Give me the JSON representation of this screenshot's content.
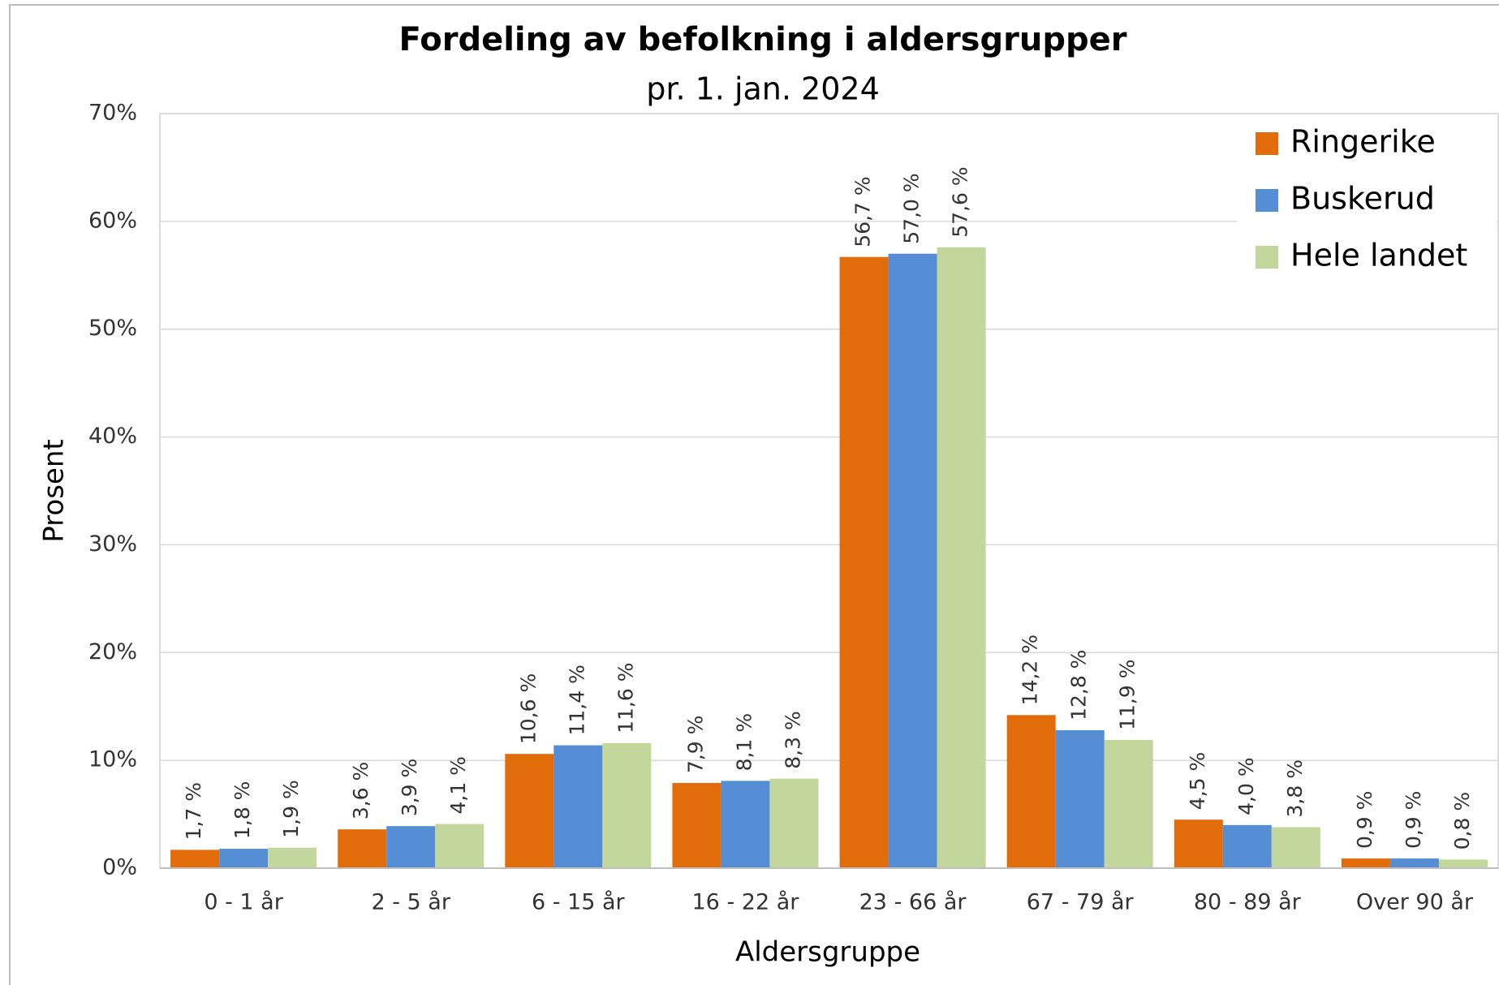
{
  "chart_data": {
    "type": "bar",
    "title": "Fordeling av befolkning i aldersgrupper",
    "subtitle": "pr. 1. jan. 2024",
    "x_label": "Aldersgruppe",
    "y_label": "Prosent",
    "categories": [
      "0 - 1 år",
      "2 - 5 år",
      "6 - 15 år",
      "16 - 22 år",
      "23 - 66 år",
      "67 - 79 år",
      "80 - 89 år",
      "Over 90 år"
    ],
    "series": [
      {
        "name": "Ringerike",
        "color": "#e36c0a",
        "values": [
          1.7,
          3.6,
          10.6,
          7.9,
          56.7,
          14.2,
          4.5,
          0.9
        ],
        "value_labels": [
          "1,7 %",
          "3,6 %",
          "10,6 %",
          "7,9 %",
          "56,7 %",
          "14,2 %",
          "4,5 %",
          "0,9 %"
        ]
      },
      {
        "name": "Buskerud",
        "color": "#558ed5",
        "values": [
          1.8,
          3.9,
          11.4,
          8.1,
          57.0,
          12.8,
          4.0,
          0.9
        ],
        "value_labels": [
          "1,8 %",
          "3,9 %",
          "11,4 %",
          "8,1 %",
          "57,0 %",
          "12,8 %",
          "4,0 %",
          "0,9 %"
        ]
      },
      {
        "name": "Hele landet",
        "color": "#c3d69b",
        "values": [
          1.9,
          4.1,
          11.6,
          8.3,
          57.6,
          11.9,
          3.8,
          0.8
        ],
        "value_labels": [
          "1,9 %",
          "4,1 %",
          "11,6 %",
          "8,3 %",
          "57,6 %",
          "11,9 %",
          "3,8 %",
          "0,8 %"
        ]
      }
    ],
    "ylim": [
      0,
      70
    ],
    "yticks": [
      {
        "value": 0,
        "label": "0%"
      },
      {
        "value": 10,
        "label": "10%"
      },
      {
        "value": 20,
        "label": "20%"
      },
      {
        "value": 30,
        "label": "30%"
      },
      {
        "value": 40,
        "label": "40%"
      },
      {
        "value": 50,
        "label": "50%"
      },
      {
        "value": 60,
        "label": "60%"
      },
      {
        "value": 70,
        "label": "70%"
      }
    ],
    "grid": true,
    "legend": "top-right"
  }
}
